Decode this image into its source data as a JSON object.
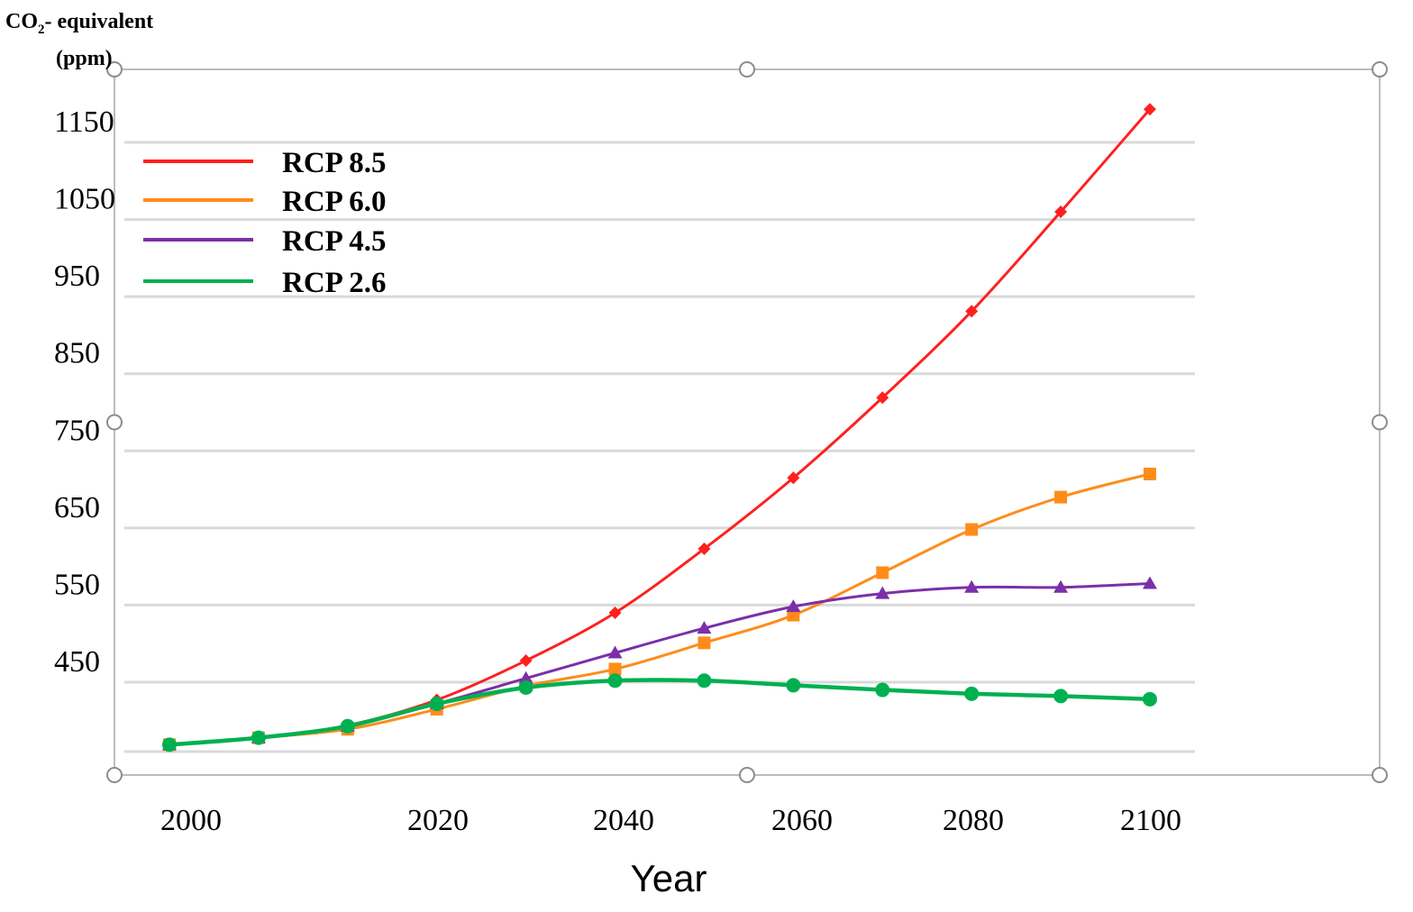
{
  "chart_data": {
    "type": "line",
    "ylabel_line1": "CO",
    "ylabel_subscript": "2",
    "ylabel_line1_suffix": "- equivalent",
    "ylabel_line2": "(ppm)",
    "xlabel": "Year",
    "x_tick_labels": [
      "2000",
      "2020",
      "2040",
      "2060",
      "2080",
      "2100"
    ],
    "x_tick_values": [
      2000,
      2020,
      2040,
      2060,
      2080,
      2100
    ],
    "y_tick_labels": [
      "450",
      "550",
      "650",
      "750",
      "850",
      "950",
      "1050",
      "1150"
    ],
    "y_tick_values": [
      450,
      550,
      650,
      750,
      850,
      950,
      1050,
      1150
    ],
    "ylim": [
      365,
      1210
    ],
    "grid": true,
    "legend_position": "top-left",
    "x": [
      2000,
      2010,
      2020,
      2030,
      2040,
      2050,
      2060,
      2070,
      2080,
      2090,
      2100,
      2110
    ],
    "series": [
      {
        "name": "RCP 8.5",
        "color": "#ff2020",
        "marker": "diamond",
        "values": [
          369,
          378,
          394,
          427,
          478,
          540,
          623,
          715,
          819,
          931,
          1060,
          1193
        ]
      },
      {
        "name": "RCP 6.0",
        "color": "#ff8c1a",
        "marker": "square",
        "values": [
          369,
          378,
          389,
          415,
          445,
          467,
          501,
          537,
          592,
          648,
          690,
          720
        ]
      },
      {
        "name": "RCP 4.5",
        "color": "#7b2fa8",
        "marker": "triangle",
        "values": [
          369,
          378,
          393,
          422,
          455,
          488,
          520,
          548,
          565,
          573,
          573,
          578
        ]
      },
      {
        "name": "RCP 2.6",
        "color": "#00b050",
        "marker": "circle",
        "values": [
          369,
          378,
          393,
          422,
          443,
          452,
          452,
          446,
          440,
          435,
          432,
          428
        ]
      }
    ]
  }
}
